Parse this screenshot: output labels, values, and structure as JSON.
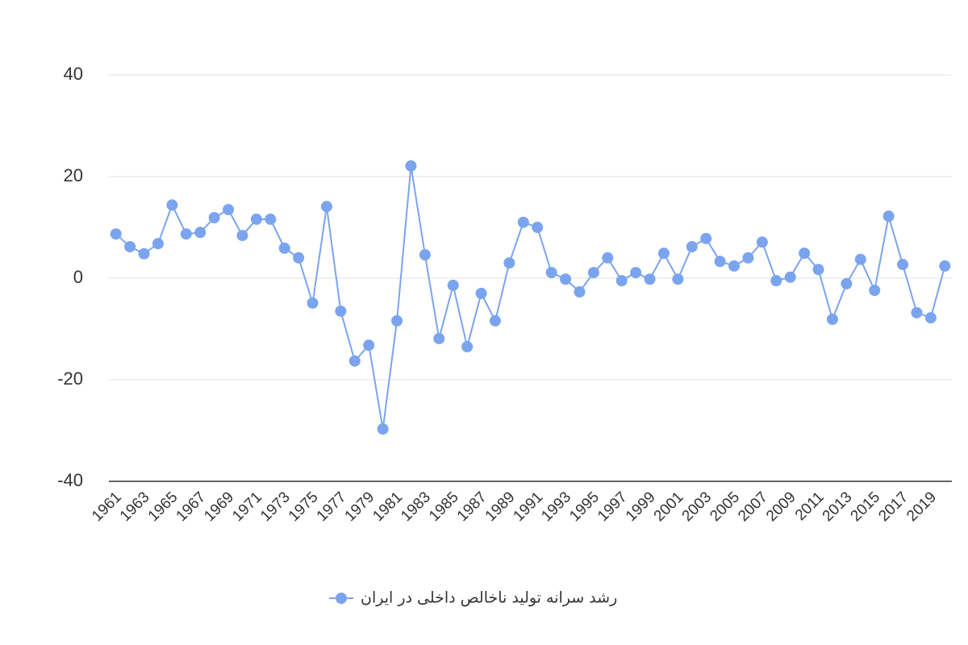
{
  "chart_data": {
    "type": "line",
    "categories": [
      1961,
      null,
      1963,
      null,
      1965,
      null,
      1967,
      null,
      1969,
      null,
      1971,
      null,
      1973,
      null,
      1975,
      null,
      1977,
      null,
      1979,
      null,
      1981,
      null,
      1983,
      null,
      1985,
      null,
      1987,
      null,
      1989,
      null,
      1991,
      null,
      1993,
      null,
      1995,
      null,
      1997,
      null,
      1999,
      null,
      2001,
      null,
      2003,
      null,
      2005,
      null,
      2007,
      null,
      2009,
      null,
      2011,
      null,
      2013,
      null,
      2015,
      null,
      2017,
      null,
      2019,
      null
    ],
    "series": [
      {
        "name": "رشد سرانه تولید ناخالص داخلی در ایران",
        "color": "#7ba4ef",
        "values": [
          8.7,
          6.2,
          4.8,
          6.8,
          14.4,
          8.7,
          9.0,
          11.9,
          13.5,
          8.4,
          11.6,
          11.6,
          5.9,
          4.0,
          -4.9,
          14.1,
          -6.5,
          -16.3,
          -13.2,
          -29.7,
          -8.4,
          22.1,
          4.6,
          -11.9,
          -1.4,
          -13.5,
          -3.0,
          -8.4,
          3.0,
          11.0,
          10.0,
          1.1,
          -0.2,
          -2.7,
          1.1,
          4.0,
          -0.5,
          1.1,
          -0.2,
          4.9,
          -0.2,
          6.2,
          7.8,
          3.3,
          2.4,
          4.0,
          7.1,
          -0.5,
          0.2,
          4.9,
          1.7,
          -8.1,
          -1.1,
          3.7,
          -2.4,
          12.2,
          2.7,
          -6.8,
          -7.8,
          2.4
        ]
      }
    ],
    "ylim": [
      -40,
      40
    ],
    "yticks": [
      -40,
      -20,
      0,
      20,
      40
    ],
    "grid": true,
    "legend": "bottom"
  }
}
